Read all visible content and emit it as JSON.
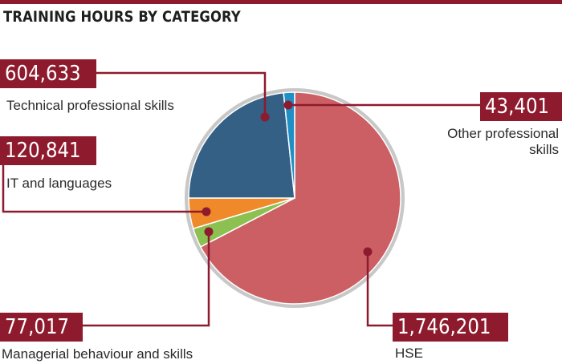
{
  "title": "TRAINING HOURS BY CATEGORY",
  "colors": {
    "accent": "#8e1a2e",
    "HSE": "#cc5f63",
    "Technical professional skills": "#336084",
    "Other professional skills": "#1f8fc6",
    "IT and languages": "#f0892a",
    "Managerial behaviour and skills": "#8cc152",
    "rim": "#c8c8c8"
  },
  "chart_data": {
    "type": "pie",
    "title": "TRAINING HOURS BY CATEGORY",
    "slices": [
      {
        "label": "HSE",
        "value": 1746201,
        "display": "1,746,201"
      },
      {
        "label": "Managerial behaviour and skills",
        "value": 77017,
        "display": "77,017"
      },
      {
        "label": "IT and languages",
        "value": 120841,
        "display": "120,841"
      },
      {
        "label": "Technical professional skills",
        "value": 604633,
        "display": "604,633"
      },
      {
        "label": "Other professional skills",
        "value": 43401,
        "display": "43,401"
      }
    ],
    "legend": "callouts"
  },
  "callouts": {
    "technical": {
      "value": "604,633",
      "label": "Technical professional skills"
    },
    "other": {
      "value": "43,401",
      "label_line1": "Other professional",
      "label_line2": "skills"
    },
    "it": {
      "value": "120,841",
      "label": "IT and languages"
    },
    "managerial": {
      "value": "77,017",
      "label": "Managerial behaviour and skills"
    },
    "hse": {
      "value": "1,746,201",
      "label": "HSE"
    }
  }
}
